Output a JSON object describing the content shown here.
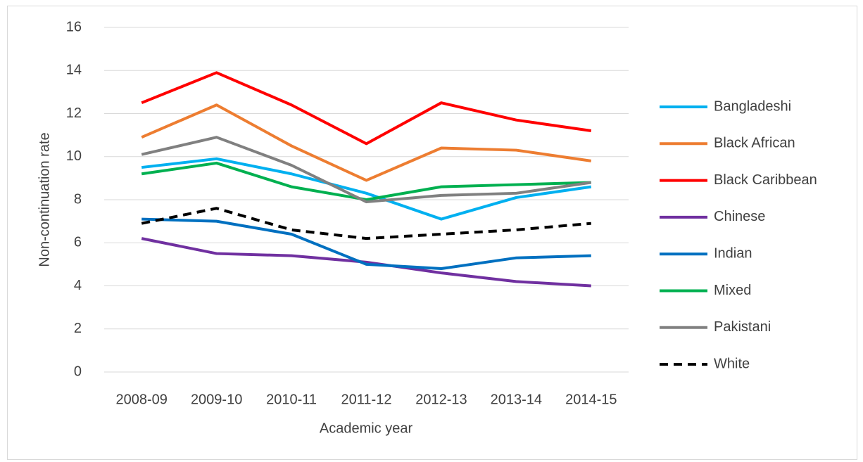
{
  "chart_data": {
    "type": "line",
    "x_label": "Academic year",
    "y_label": "Non-continuation rate",
    "categories": [
      "2008-09",
      "2009-10",
      "2010-11",
      "2011-12",
      "2012-13",
      "2013-14",
      "2014-15"
    ],
    "ylim": [
      0,
      16
    ],
    "yticks": [
      0,
      2,
      4,
      6,
      8,
      10,
      12,
      14,
      16
    ],
    "grid": true,
    "legend": "right",
    "series": [
      {
        "name": "Bangladeshi",
        "color": "#00b0f0",
        "values": [
          9.5,
          9.9,
          9.2,
          8.3,
          7.1,
          8.1,
          8.6
        ]
      },
      {
        "name": "Black African",
        "color": "#ed7d31",
        "values": [
          10.9,
          12.4,
          10.5,
          8.9,
          10.4,
          10.3,
          9.8
        ]
      },
      {
        "name": "Black Caribbean",
        "color": "#ff0000",
        "values": [
          12.5,
          13.9,
          12.4,
          10.6,
          12.5,
          11.7,
          11.2
        ]
      },
      {
        "name": "Chinese",
        "color": "#7030a0",
        "values": [
          6.2,
          5.5,
          5.4,
          5.1,
          4.6,
          4.2,
          4.0
        ]
      },
      {
        "name": "Indian",
        "color": "#0070c0",
        "values": [
          7.1,
          7.0,
          6.4,
          5.0,
          4.8,
          5.3,
          5.4
        ]
      },
      {
        "name": "Mixed",
        "color": "#00b050",
        "values": [
          9.2,
          9.7,
          8.6,
          8.0,
          8.6,
          8.7,
          8.8
        ]
      },
      {
        "name": "Pakistani",
        "color": "#808080",
        "values": [
          10.1,
          10.9,
          9.6,
          7.9,
          8.2,
          8.3,
          8.8
        ]
      },
      {
        "name": "White",
        "color": "#000000",
        "dashed": true,
        "values": [
          6.9,
          7.6,
          6.6,
          6.2,
          6.4,
          6.6,
          6.9
        ]
      }
    ]
  }
}
